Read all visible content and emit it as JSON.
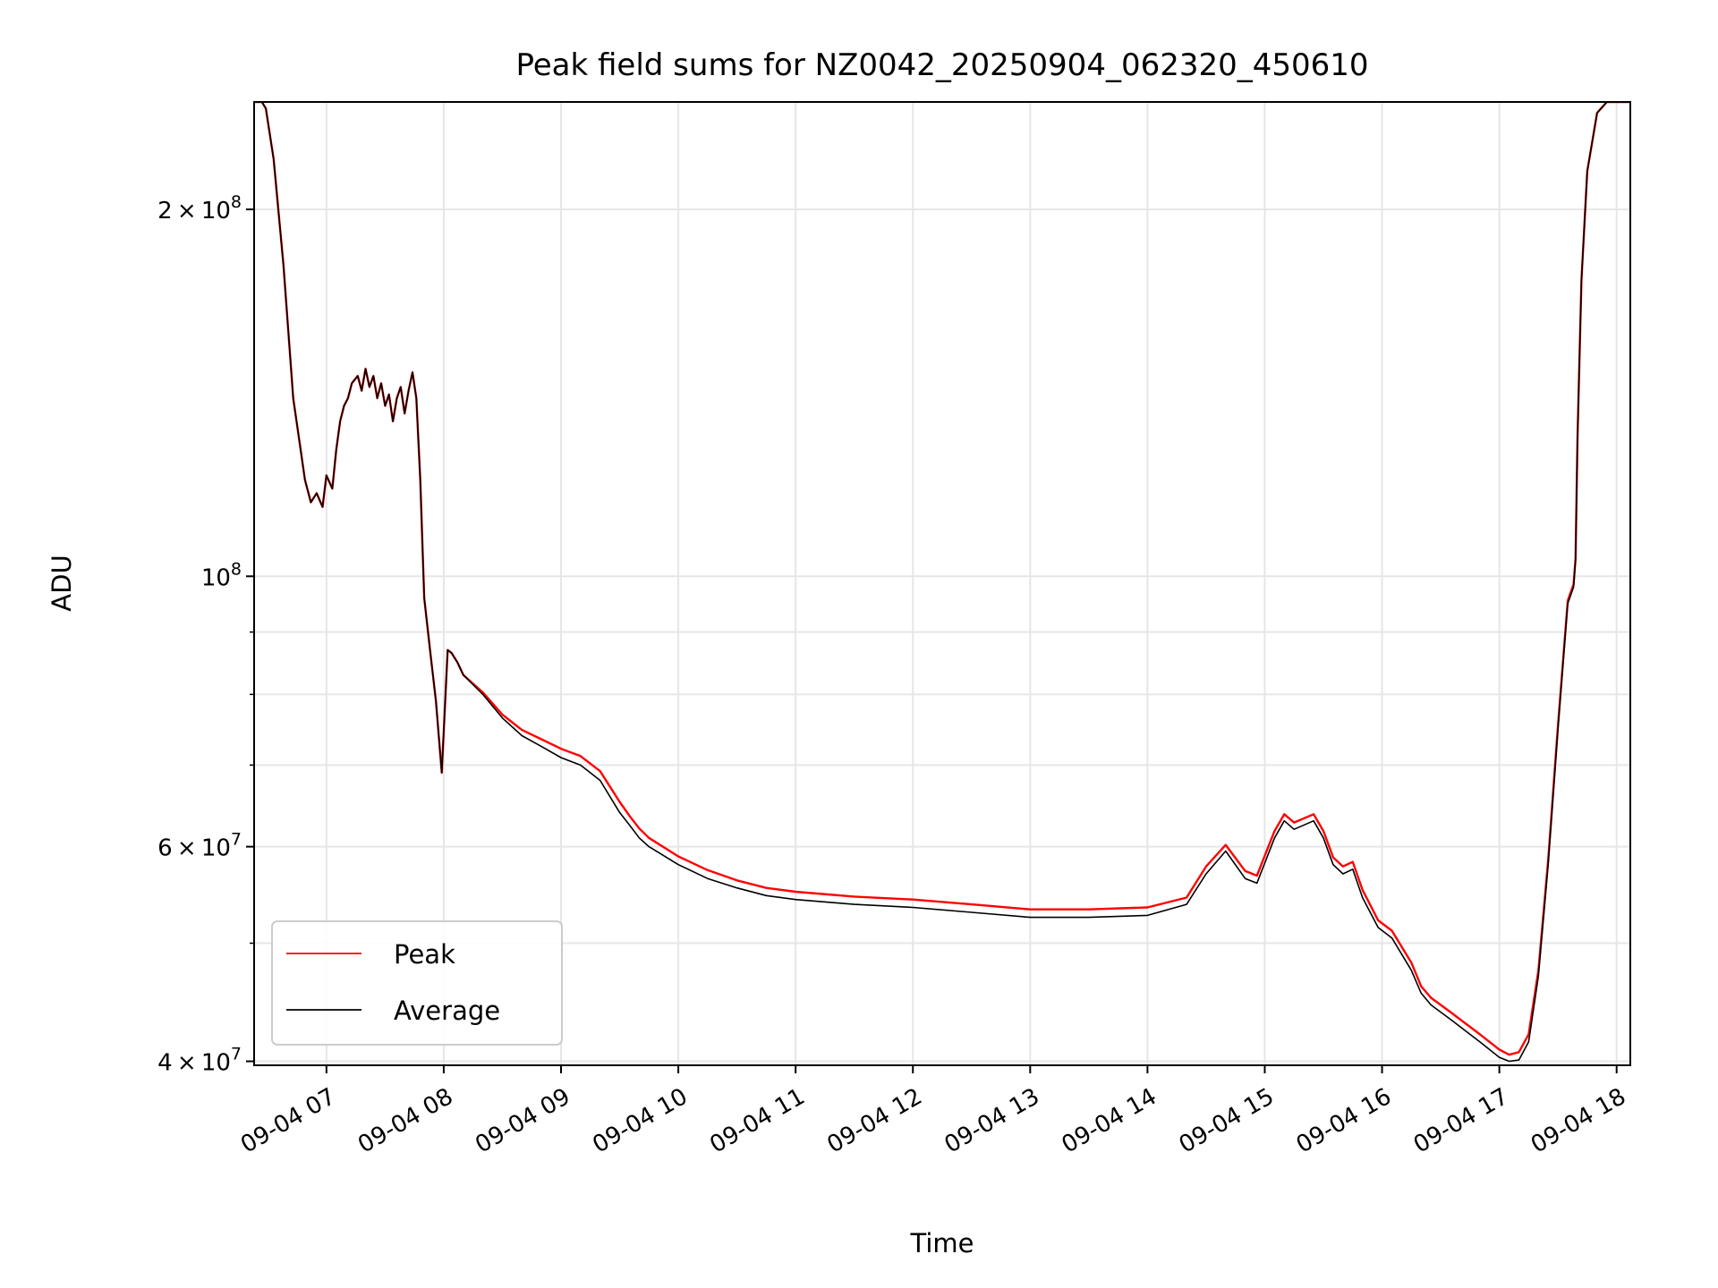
{
  "chart_data": {
    "type": "line",
    "title": "Peak field sums for NZ0042_20250904_062320_450610",
    "xlabel": "Time",
    "ylabel": "ADU",
    "yscale": "log",
    "ylim": [
      39700000,
      245000000
    ],
    "xlim": [
      "09-04 06:23",
      "09-04 18:07"
    ],
    "grid": true,
    "legend_position": "lower-left",
    "x_ticks": [
      "09-04 07",
      "09-04 08",
      "09-04 09",
      "09-04 10",
      "09-04 11",
      "09-04 12",
      "09-04 13",
      "09-04 14",
      "09-04 15",
      "09-04 16",
      "09-04 17",
      "09-04 18"
    ],
    "y_ticks": [
      {
        "value": 40000000,
        "mantissa": "4",
        "exponent": "7"
      },
      {
        "value": 60000000,
        "mantissa": "6",
        "exponent": "7"
      },
      {
        "value": 100000000,
        "mantissa": "",
        "exponent": "8"
      },
      {
        "value": 200000000,
        "mantissa": "2",
        "exponent": "8"
      }
    ],
    "colors": {
      "peak": "#ff0000",
      "average": "#000000"
    },
    "series": [
      {
        "name": "Average",
        "x": [
          "06:23",
          "06:27",
          "06:29",
          "06:33",
          "06:38",
          "06:43",
          "06:49",
          "06:52",
          "06:55",
          "06:58",
          "07:00",
          "07:03",
          "07:05",
          "07:07",
          "07:09",
          "07:11",
          "07:13",
          "07:16",
          "07:18",
          "07:20",
          "07:22",
          "07:24",
          "07:26",
          "07:28",
          "07:30",
          "07:32",
          "07:34",
          "07:36",
          "07:38",
          "07:40",
          "07:42",
          "07:44",
          "07:46",
          "07:48",
          "07:50",
          "07:53",
          "07:56",
          "07:59",
          "08:02",
          "08:04",
          "08:05",
          "08:07",
          "08:10",
          "08:20",
          "08:30",
          "08:40",
          "08:50",
          "09:00",
          "09:10",
          "09:20",
          "09:30",
          "09:35",
          "09:40",
          "09:45",
          "10:00",
          "10:15",
          "10:30",
          "10:45",
          "11:00",
          "11:30",
          "12:00",
          "12:30",
          "13:00",
          "13:30",
          "14:00",
          "14:20",
          "14:30",
          "14:40",
          "14:50",
          "14:56",
          "15:05",
          "15:10",
          "15:15",
          "15:25",
          "15:30",
          "15:35",
          "15:40",
          "15:45",
          "15:50",
          "15:58",
          "16:05",
          "16:15",
          "16:20",
          "16:25",
          "16:35",
          "16:50",
          "17:00",
          "17:05",
          "17:10",
          "17:15",
          "17:20",
          "17:25",
          "17:30",
          "17:35",
          "17:38",
          "17:39",
          "17:40",
          "17:42",
          "17:45",
          "17:50",
          "17:55",
          "17:58",
          "18:07"
        ],
        "values": [
          245000000,
          245000000,
          242000000,
          220000000,
          180000000,
          140000000,
          120000000,
          115000000,
          117000000,
          114000000,
          121000000,
          118000000,
          127000000,
          134000000,
          138000000,
          140000000,
          144000000,
          146000000,
          142000000,
          148000000,
          143000000,
          146000000,
          140000000,
          144000000,
          138000000,
          141000000,
          134000000,
          140000000,
          143000000,
          136000000,
          142000000,
          147000000,
          140000000,
          120000000,
          96000000,
          87000000,
          79000000,
          69000000,
          87000000,
          86500000,
          86000000,
          85000000,
          83000000,
          80000000,
          76500000,
          74000000,
          72500000,
          71000000,
          70000000,
          68000000,
          64000000,
          62500000,
          61000000,
          60000000,
          58000000,
          56500000,
          55500000,
          54700000,
          54300000,
          53800000,
          53500000,
          53000000,
          52500000,
          52500000,
          52700000,
          53800000,
          57000000,
          59500000,
          56500000,
          56000000,
          61000000,
          63000000,
          62000000,
          63000000,
          61000000,
          58000000,
          57000000,
          57500000,
          54500000,
          51500000,
          50500000,
          47500000,
          45500000,
          44500000,
          43300000,
          41500000,
          40300000,
          40000000,
          40100000,
          41500000,
          47000000,
          58000000,
          75000000,
          95000000,
          98000000,
          103000000,
          130000000,
          175000000,
          215000000,
          240000000,
          245000000,
          245000000,
          245000000
        ]
      },
      {
        "name": "Peak",
        "x": [
          "06:23",
          "06:27",
          "06:29",
          "06:33",
          "06:38",
          "06:43",
          "06:49",
          "06:52",
          "06:55",
          "06:58",
          "07:00",
          "07:03",
          "07:05",
          "07:07",
          "07:09",
          "07:11",
          "07:13",
          "07:16",
          "07:18",
          "07:20",
          "07:22",
          "07:24",
          "07:26",
          "07:28",
          "07:30",
          "07:32",
          "07:34",
          "07:36",
          "07:38",
          "07:40",
          "07:42",
          "07:44",
          "07:46",
          "07:48",
          "07:50",
          "07:53",
          "07:56",
          "07:59",
          "08:02",
          "08:04",
          "08:05",
          "08:07",
          "08:10",
          "08:20",
          "08:30",
          "08:40",
          "08:50",
          "09:00",
          "09:10",
          "09:20",
          "09:30",
          "09:35",
          "09:40",
          "09:45",
          "10:00",
          "10:15",
          "10:30",
          "10:45",
          "11:00",
          "11:30",
          "12:00",
          "12:30",
          "13:00",
          "13:30",
          "14:00",
          "14:20",
          "14:30",
          "14:40",
          "14:50",
          "14:56",
          "15:05",
          "15:10",
          "15:15",
          "15:25",
          "15:30",
          "15:35",
          "15:40",
          "15:45",
          "15:50",
          "15:58",
          "16:05",
          "16:15",
          "16:20",
          "16:25",
          "16:35",
          "16:50",
          "17:00",
          "17:05",
          "17:10",
          "17:15",
          "17:20",
          "17:25",
          "17:30",
          "17:35",
          "17:38",
          "17:39",
          "17:40",
          "17:42",
          "17:45",
          "17:50",
          "17:55",
          "17:58",
          "18:07"
        ],
        "values": [
          245000000,
          245000000,
          242000000,
          220000000,
          180000000,
          140000000,
          120000000,
          115000000,
          117000000,
          114000000,
          121000000,
          118000000,
          127000000,
          134000000,
          138000000,
          140000000,
          144000000,
          146000000,
          142000000,
          148000000,
          143000000,
          146000000,
          140000000,
          144000000,
          138000000,
          141000000,
          134000000,
          140000000,
          143000000,
          136000000,
          142000000,
          147000000,
          140000000,
          120000000,
          96000000,
          87000000,
          79000000,
          69000000,
          87000000,
          86500000,
          86000000,
          85000000,
          83000000,
          80300000,
          77000000,
          74800000,
          73500000,
          72200000,
          71200000,
          69200000,
          65300000,
          63600000,
          62100000,
          61000000,
          58900000,
          57400000,
          56300000,
          55500000,
          55100000,
          54600000,
          54300000,
          53800000,
          53300000,
          53300000,
          53500000,
          54500000,
          57800000,
          60200000,
          57300000,
          56800000,
          61800000,
          63800000,
          62800000,
          63800000,
          61800000,
          58800000,
          57800000,
          58300000,
          55300000,
          52200000,
          51200000,
          48200000,
          46100000,
          45100000,
          43900000,
          42100000,
          40900000,
          40500000,
          40700000,
          42100000,
          47500000,
          58500000,
          75500000,
          95500000,
          98500000,
          103500000,
          130000000,
          175000000,
          215000000,
          240000000,
          245000000,
          245000000,
          245000000
        ]
      }
    ]
  }
}
